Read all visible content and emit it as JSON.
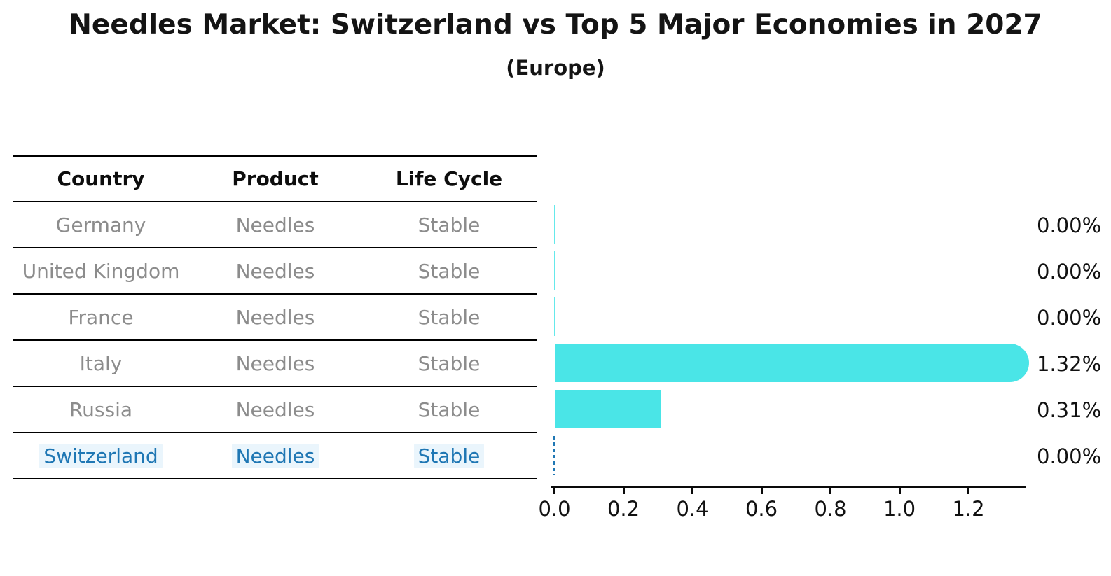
{
  "title": "Needles Market: Switzerland vs Top 5 Major Economies in 2027",
  "subtitle": "(Europe)",
  "table": {
    "headers": [
      "Country",
      "Product",
      "Life Cycle"
    ],
    "rows": [
      {
        "country": "Germany",
        "product": "Needles",
        "life_cycle": "Stable",
        "highlight": false
      },
      {
        "country": "United Kingdom",
        "product": "Needles",
        "life_cycle": "Stable",
        "highlight": false
      },
      {
        "country": "France",
        "product": "Needles",
        "life_cycle": "Stable",
        "highlight": false
      },
      {
        "country": "Italy",
        "product": "Needles",
        "life_cycle": "Stable",
        "highlight": false
      },
      {
        "country": "Russia",
        "product": "Needles",
        "life_cycle": "Stable",
        "highlight": false
      },
      {
        "country": "Switzerland",
        "product": "Needles",
        "life_cycle": "Stable",
        "highlight": true
      }
    ]
  },
  "chart_data": {
    "type": "bar",
    "orientation": "horizontal",
    "title": "Needles Market: Switzerland vs Top 5 Major Economies in 2027",
    "subtitle": "(Europe)",
    "categories": [
      "Germany",
      "United Kingdom",
      "France",
      "Italy",
      "Russia",
      "Switzerland"
    ],
    "values": [
      0.0,
      0.0,
      0.0,
      1.32,
      0.31,
      0.0
    ],
    "value_labels": [
      "0.00%",
      "0.00%",
      "0.00%",
      "1.32%",
      "0.31%",
      "0.00%"
    ],
    "bar_styles": [
      "sliver",
      "sliver",
      "sliver",
      "rounded",
      "flat",
      "dashed-zero"
    ],
    "xlabel": "",
    "ylabel": "",
    "xlim": [
      0.0,
      1.38
    ],
    "xticks": [
      0.0,
      0.2,
      0.4,
      0.6,
      0.8,
      1.0,
      1.2
    ],
    "xtick_labels": [
      "0.0",
      "0.2",
      "0.4",
      "0.6",
      "0.8",
      "1.0",
      "1.2"
    ],
    "grid": false,
    "legend": false,
    "bar_color": "#4ae5e7",
    "highlight_color": "#1f77b4",
    "highlight_category": "Switzerland"
  },
  "colors": {
    "background": "#ffffff",
    "bar": "#4ae5e7",
    "highlight_blue": "#1f77b4",
    "table_text_gray": "#8c8c8c",
    "text_black": "#141414"
  }
}
